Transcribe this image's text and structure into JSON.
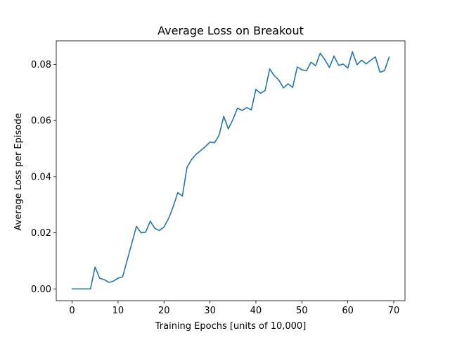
{
  "chart_data": {
    "type": "line",
    "title": "Average Loss on Breakout",
    "xlabel": "Training Epochs [units of 10,000]",
    "ylabel": "Average Loss per Episode",
    "xlim": [
      -3.45,
      72.45
    ],
    "ylim": [
      -0.0042,
      0.0884
    ],
    "xticks": [
      0,
      10,
      20,
      30,
      40,
      50,
      60,
      70
    ],
    "xtick_labels": [
      "0",
      "10",
      "20",
      "30",
      "40",
      "50",
      "60",
      "70"
    ],
    "yticks": [
      0.0,
      0.02,
      0.04,
      0.06,
      0.08
    ],
    "ytick_labels": [
      "0.00",
      "0.02",
      "0.04",
      "0.06",
      "0.08"
    ],
    "grid": false,
    "line_color": "#1f77b4",
    "series": [
      {
        "name": "",
        "x": [
          0,
          1,
          2,
          3,
          4,
          5,
          6,
          7,
          8,
          9,
          10,
          11,
          12,
          13,
          14,
          15,
          16,
          17,
          18,
          19,
          20,
          21,
          22,
          23,
          24,
          25,
          26,
          27,
          28,
          29,
          30,
          31,
          32,
          33,
          34,
          35,
          36,
          37,
          38,
          39,
          40,
          41,
          42,
          43,
          44,
          45,
          46,
          47,
          48,
          49,
          50,
          51,
          52,
          53,
          54,
          55,
          56,
          57,
          58,
          59,
          60,
          61,
          62,
          63,
          64,
          65,
          66,
          67,
          68,
          69
        ],
        "y": [
          0.0,
          0.0,
          0.0,
          0.0,
          0.0,
          0.0078,
          0.0038,
          0.0033,
          0.0023,
          0.0028,
          0.0038,
          0.0043,
          0.0103,
          0.0163,
          0.0223,
          0.02,
          0.0202,
          0.0241,
          0.0216,
          0.0208,
          0.0221,
          0.0251,
          0.0293,
          0.0343,
          0.0331,
          0.0433,
          0.0461,
          0.048,
          0.0493,
          0.0507,
          0.0523,
          0.0521,
          0.0548,
          0.0615,
          0.057,
          0.0604,
          0.0644,
          0.0636,
          0.0646,
          0.0638,
          0.0711,
          0.0697,
          0.0707,
          0.0784,
          0.076,
          0.0744,
          0.0716,
          0.0731,
          0.0718,
          0.0791,
          0.0781,
          0.0777,
          0.0808,
          0.0795,
          0.084,
          0.0817,
          0.0789,
          0.083,
          0.0797,
          0.0801,
          0.0787,
          0.0845,
          0.0799,
          0.0815,
          0.0802,
          0.0815,
          0.0827,
          0.0772,
          0.0778,
          0.0826
        ]
      }
    ]
  }
}
